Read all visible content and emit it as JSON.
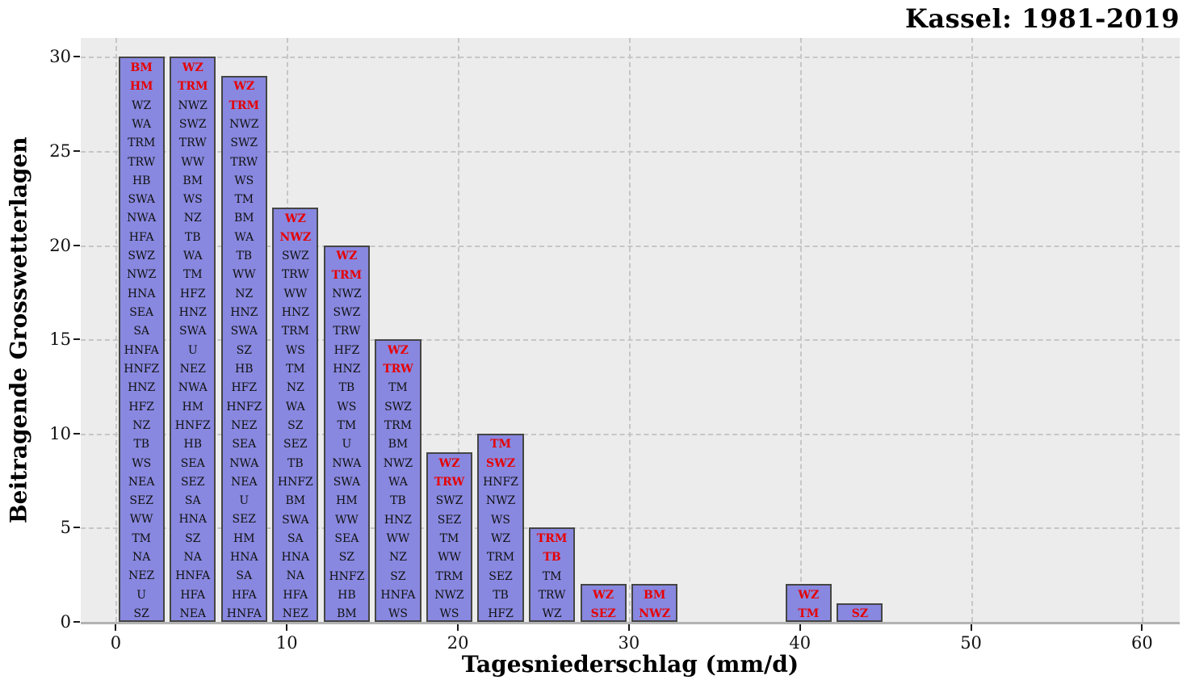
{
  "chart_data": {
    "type": "bar",
    "title": "Kassel: 1981-2019",
    "xlabel": "Tagesniederschlag (mm/d)",
    "ylabel": "Beitragende Grosswetterlagen",
    "xlim": [
      -2.05,
      62.2
    ],
    "ylim": [
      0,
      31
    ],
    "xticks": [
      0,
      10,
      20,
      30,
      40,
      50,
      60
    ],
    "yticks": [
      0,
      5,
      10,
      15,
      20,
      25,
      30
    ],
    "grid": "dashed-on",
    "legend": "none",
    "bar_width": 2.7,
    "colors": {
      "bar_fill": "#8888e0",
      "bar_edge": "#454545",
      "label_text": "#111111",
      "highlight_text": "#e60000",
      "plot_bg": "#ececec",
      "grid": "#c6c6c6"
    },
    "bars": [
      {
        "x": 1.5,
        "height": 30,
        "red_count": 2,
        "labels": [
          "BM",
          "HM",
          "WZ",
          "WA",
          "TRM",
          "TRW",
          "HB",
          "SWA",
          "NWA",
          "HFA",
          "SWZ",
          "NWZ",
          "HNA",
          "SEA",
          "SA",
          "HNFA",
          "HNFZ",
          "HNZ",
          "HFZ",
          "NZ",
          "TB",
          "WS",
          "NEA",
          "SEZ",
          "WW",
          "TM",
          "NA",
          "NEZ",
          "U",
          "SZ"
        ]
      },
      {
        "x": 4.5,
        "height": 30,
        "red_count": 2,
        "labels": [
          "WZ",
          "TRM",
          "NWZ",
          "SWZ",
          "TRW",
          "WW",
          "BM",
          "WS",
          "NZ",
          "TB",
          "WA",
          "TM",
          "HFZ",
          "HNZ",
          "SWA",
          "U",
          "NEZ",
          "NWA",
          "HM",
          "HNFZ",
          "HB",
          "SEA",
          "SEZ",
          "SA",
          "HNA",
          "SZ",
          "NA",
          "HNFA",
          "HFA",
          "NEA"
        ]
      },
      {
        "x": 7.5,
        "height": 29,
        "red_count": 2,
        "labels": [
          "WZ",
          "TRM",
          "NWZ",
          "SWZ",
          "TRW",
          "WS",
          "TM",
          "BM",
          "WA",
          "TB",
          "WW",
          "NZ",
          "HNZ",
          "SWA",
          "SZ",
          "HB",
          "HFZ",
          "HNFZ",
          "NEZ",
          "SEA",
          "NWA",
          "NEA",
          "U",
          "SEZ",
          "HM",
          "HNA",
          "SA",
          "HFA",
          "HNFA"
        ]
      },
      {
        "x": 10.5,
        "height": 22,
        "red_count": 2,
        "labels": [
          "WZ",
          "NWZ",
          "SWZ",
          "TRW",
          "WW",
          "HNZ",
          "TRM",
          "WS",
          "TM",
          "NZ",
          "WA",
          "SZ",
          "SEZ",
          "TB",
          "HNFZ",
          "BM",
          "SWA",
          "SA",
          "HNA",
          "NA",
          "HFA",
          "NEZ"
        ]
      },
      {
        "x": 13.5,
        "height": 20,
        "red_count": 2,
        "labels": [
          "WZ",
          "TRM",
          "NWZ",
          "SWZ",
          "TRW",
          "HFZ",
          "HNZ",
          "TB",
          "WS",
          "TM",
          "U",
          "NWA",
          "SWA",
          "HM",
          "WW",
          "SEA",
          "SZ",
          "HNFZ",
          "HB",
          "BM"
        ]
      },
      {
        "x": 16.5,
        "height": 15,
        "red_count": 2,
        "labels": [
          "WZ",
          "TRW",
          "TM",
          "SWZ",
          "TRM",
          "BM",
          "NWZ",
          "WA",
          "TB",
          "HNZ",
          "WW",
          "NZ",
          "SZ",
          "HNFA",
          "WS"
        ]
      },
      {
        "x": 19.5,
        "height": 9,
        "red_count": 2,
        "labels": [
          "WZ",
          "TRW",
          "SWZ",
          "SEZ",
          "TM",
          "WW",
          "TRM",
          "NWZ",
          "WS"
        ]
      },
      {
        "x": 22.5,
        "height": 10,
        "red_count": 2,
        "labels": [
          "TM",
          "SWZ",
          "HNFZ",
          "NWZ",
          "WS",
          "WZ",
          "TRM",
          "SEZ",
          "TB",
          "HFZ"
        ]
      },
      {
        "x": 25.5,
        "height": 5,
        "red_count": 2,
        "labels": [
          "TRM",
          "TB",
          "TM",
          "TRW",
          "WZ"
        ]
      },
      {
        "x": 28.5,
        "height": 2,
        "red_count": 2,
        "labels": [
          "WZ",
          "SEZ"
        ]
      },
      {
        "x": 31.5,
        "height": 2,
        "red_count": 2,
        "labels": [
          "BM",
          "NWZ"
        ]
      },
      {
        "x": 40.5,
        "height": 2,
        "red_count": 2,
        "labels": [
          "WZ",
          "TM"
        ]
      },
      {
        "x": 43.5,
        "height": 1,
        "red_count": 1,
        "labels": [
          "SZ"
        ]
      }
    ]
  }
}
